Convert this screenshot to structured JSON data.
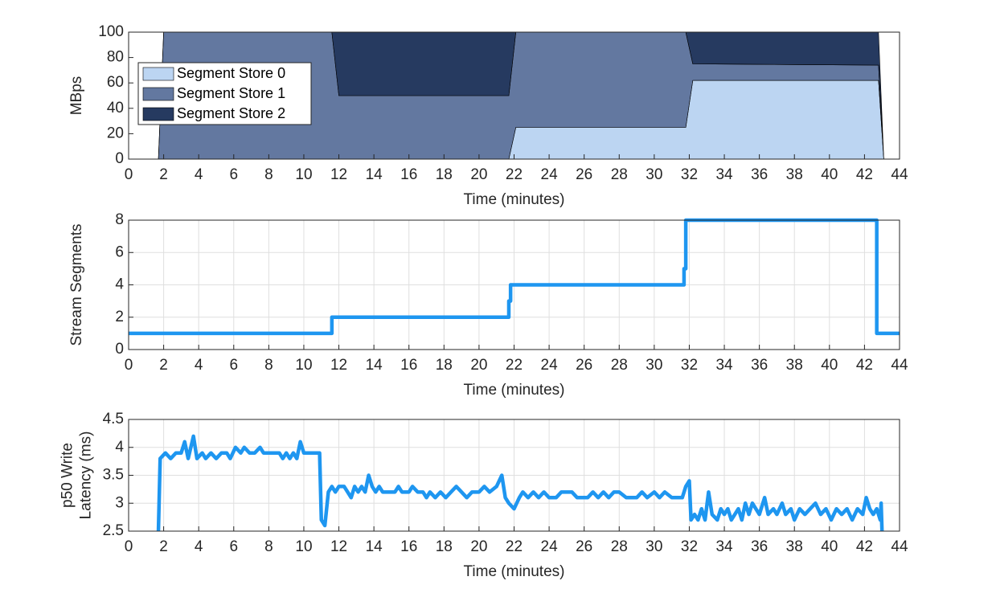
{
  "chart_data": [
    {
      "type": "area",
      "stacked": true,
      "xlabel": "Time (minutes)",
      "ylabel": "MBps",
      "x": [
        0,
        1.7,
        2.0,
        11.6,
        12.0,
        21.7,
        22.1,
        31.8,
        32.2,
        42.8,
        43.1,
        44
      ],
      "series": [
        {
          "name": "Segment Store 0",
          "color": "#bcd5f2",
          "values": [
            0,
            0,
            0,
            0,
            0,
            0,
            25,
            25,
            62,
            62,
            0,
            0
          ]
        },
        {
          "name": "Segment Store 1",
          "color": "#6378a0",
          "values": [
            0,
            0,
            100,
            100,
            50,
            50,
            75,
            75,
            13,
            12,
            0,
            0
          ]
        },
        {
          "name": "Segment Store 2",
          "color": "#263a60",
          "values": [
            0,
            0,
            0,
            0,
            50,
            50,
            0,
            0,
            25,
            26,
            0,
            0
          ]
        }
      ],
      "xlim": [
        0,
        44
      ],
      "xticks": [
        0,
        2,
        4,
        6,
        8,
        10,
        12,
        14,
        16,
        18,
        20,
        22,
        24,
        26,
        28,
        30,
        32,
        34,
        36,
        38,
        40,
        42,
        44
      ],
      "ylim": [
        0,
        100
      ],
      "yticks": [
        0,
        20,
        40,
        60,
        80,
        100
      ],
      "grid": false,
      "legend": "northwest"
    },
    {
      "type": "line",
      "xlabel": "Time (minutes)",
      "ylabel": "Stream Segments",
      "x": [
        0,
        11.6,
        11.6,
        21.7,
        21.7,
        21.8,
        21.8,
        31.7,
        31.7,
        31.8,
        31.8,
        42.7,
        42.7,
        44
      ],
      "values": [
        1,
        1,
        2,
        2,
        3,
        3,
        4,
        4,
        5,
        5,
        8,
        8,
        1,
        1
      ],
      "color": "#1e96f0",
      "xlim": [
        0,
        44
      ],
      "xticks": [
        0,
        2,
        4,
        6,
        8,
        10,
        12,
        14,
        16,
        18,
        20,
        22,
        24,
        26,
        28,
        30,
        32,
        34,
        36,
        38,
        40,
        42,
        44
      ],
      "ylim": [
        0,
        8
      ],
      "yticks": [
        0,
        2,
        4,
        6,
        8
      ],
      "grid": true
    },
    {
      "type": "line",
      "xlabel": "Time (minutes)",
      "ylabel": [
        "p50 Write",
        "Latency (ms)"
      ],
      "x": [
        1.7,
        1.8,
        2.1,
        2.4,
        2.7,
        3.0,
        3.2,
        3.4,
        3.7,
        3.9,
        4.2,
        4.4,
        4.7,
        5.0,
        5.3,
        5.6,
        5.8,
        6.1,
        6.4,
        6.6,
        6.9,
        7.2,
        7.5,
        7.7,
        8.6,
        8.8,
        9.0,
        9.2,
        9.4,
        9.6,
        9.8,
        10.0,
        10.9,
        11.0,
        11.2,
        11.4,
        11.6,
        11.8,
        12.0,
        12.3,
        12.5,
        12.7,
        12.9,
        13.1,
        13.3,
        13.5,
        13.7,
        13.9,
        14.1,
        14.3,
        14.5,
        15.2,
        15.4,
        15.6,
        16.0,
        16.2,
        16.5,
        16.8,
        17.0,
        17.2,
        17.5,
        17.8,
        18.1,
        18.4,
        18.7,
        19.0,
        19.3,
        19.6,
        20.0,
        20.3,
        20.6,
        21.0,
        21.3,
        21.5,
        21.7,
        22.0,
        22.3,
        22.5,
        22.8,
        23.1,
        23.4,
        23.7,
        24.0,
        24.4,
        24.7,
        25.3,
        25.6,
        26.2,
        26.5,
        26.8,
        27.1,
        27.4,
        27.7,
        28.0,
        28.4,
        29.0,
        29.3,
        29.6,
        30.0,
        30.3,
        30.6,
        31.0,
        31.6,
        31.8,
        32.0,
        32.1,
        32.3,
        32.5,
        32.7,
        32.9,
        33.1,
        33.3,
        33.6,
        33.8,
        34.0,
        34.2,
        34.4,
        34.6,
        34.8,
        35.0,
        35.2,
        35.4,
        35.6,
        35.8,
        36.0,
        36.3,
        36.5,
        36.8,
        37.0,
        37.3,
        37.5,
        37.8,
        38.0,
        38.3,
        38.6,
        38.9,
        39.2,
        39.5,
        39.8,
        40.1,
        40.4,
        40.7,
        41.0,
        41.3,
        41.6,
        41.9,
        42.1,
        42.3,
        42.5,
        42.7,
        42.9,
        42.95,
        43.0
      ],
      "values": [
        2.5,
        3.8,
        3.9,
        3.8,
        3.9,
        3.9,
        4.1,
        3.8,
        4.2,
        3.8,
        3.9,
        3.8,
        3.9,
        3.8,
        3.9,
        3.9,
        3.8,
        4.0,
        3.9,
        4.0,
        3.9,
        3.9,
        4.0,
        3.9,
        3.9,
        3.8,
        3.9,
        3.8,
        3.9,
        3.8,
        4.1,
        3.9,
        3.9,
        2.7,
        2.6,
        3.2,
        3.3,
        3.2,
        3.3,
        3.3,
        3.2,
        3.1,
        3.3,
        3.2,
        3.3,
        3.2,
        3.5,
        3.3,
        3.2,
        3.3,
        3.2,
        3.2,
        3.3,
        3.2,
        3.2,
        3.3,
        3.2,
        3.2,
        3.1,
        3.2,
        3.1,
        3.2,
        3.1,
        3.2,
        3.3,
        3.2,
        3.1,
        3.2,
        3.2,
        3.3,
        3.2,
        3.3,
        3.5,
        3.1,
        3.0,
        2.9,
        3.1,
        3.2,
        3.1,
        3.2,
        3.1,
        3.2,
        3.1,
        3.1,
        3.2,
        3.2,
        3.1,
        3.1,
        3.2,
        3.1,
        3.2,
        3.1,
        3.2,
        3.2,
        3.1,
        3.1,
        3.2,
        3.1,
        3.2,
        3.1,
        3.2,
        3.1,
        3.1,
        3.3,
        3.4,
        2.7,
        2.8,
        2.7,
        2.9,
        2.7,
        3.2,
        2.8,
        2.7,
        2.9,
        2.8,
        2.9,
        2.7,
        2.8,
        2.9,
        2.7,
        3.0,
        2.8,
        3.0,
        2.9,
        2.8,
        3.1,
        2.8,
        2.9,
        2.8,
        3.0,
        2.8,
        2.9,
        2.7,
        2.9,
        2.8,
        2.9,
        3.0,
        2.8,
        2.9,
        2.7,
        2.9,
        2.8,
        2.9,
        2.7,
        2.9,
        2.8,
        3.1,
        2.9,
        2.8,
        2.9,
        2.7,
        3.0,
        2.5
      ],
      "color": "#1e96f0",
      "xlim": [
        0,
        44
      ],
      "xticks": [
        0,
        2,
        4,
        6,
        8,
        10,
        12,
        14,
        16,
        18,
        20,
        22,
        24,
        26,
        28,
        30,
        32,
        34,
        36,
        38,
        40,
        42,
        44
      ],
      "ylim": [
        2.5,
        4.5
      ],
      "yticks": [
        2.5,
        3,
        3.5,
        4,
        4.5
      ],
      "grid": true
    }
  ]
}
